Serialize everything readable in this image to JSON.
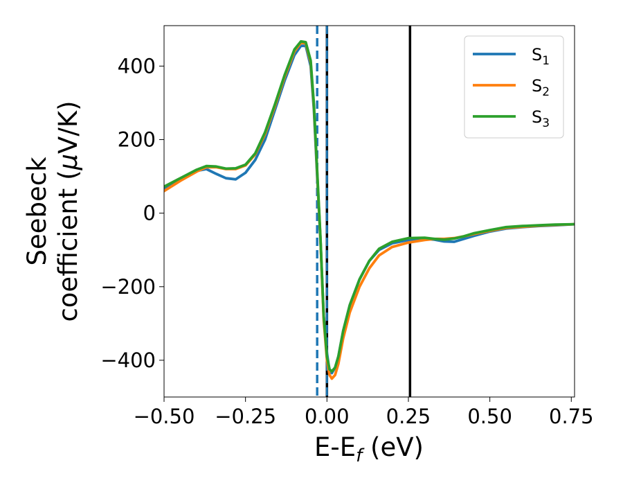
{
  "chart_data": {
    "type": "line",
    "xlabel": {
      "main": "E-E",
      "sub": "f",
      "suffix": " (eV)"
    },
    "ylabel": {
      "line1": "Seebeck",
      "line2_pre": "coefficient  (",
      "line2_mu": "μ",
      "line2_post": "V/K)"
    },
    "xlim": [
      -0.5,
      0.76
    ],
    "ylim": [
      -500,
      510
    ],
    "xticks": [
      -0.5,
      -0.25,
      0.0,
      0.25,
      0.5,
      0.75
    ],
    "xtick_labels": [
      "−0.50",
      "−0.25",
      "0.00",
      "0.25",
      "0.50",
      "0.75"
    ],
    "yticks": [
      -400,
      -200,
      0,
      200,
      400
    ],
    "ytick_labels": [
      "−400",
      "−200",
      "0",
      "200",
      "400"
    ],
    "legend_position": "top-right",
    "series": [
      {
        "name": "S",
        "sub": "1",
        "color": "#1f77b4",
        "x": [
          -0.5,
          -0.45,
          -0.4,
          -0.37,
          -0.34,
          -0.31,
          -0.28,
          -0.25,
          -0.22,
          -0.19,
          -0.16,
          -0.13,
          -0.1,
          -0.08,
          -0.065,
          -0.05,
          -0.04,
          -0.03,
          -0.02,
          -0.01,
          0.0,
          0.008,
          0.015,
          0.025,
          0.035,
          0.05,
          0.07,
          0.1,
          0.13,
          0.16,
          0.2,
          0.25,
          0.3,
          0.33,
          0.36,
          0.39,
          0.42,
          0.45,
          0.5,
          0.55,
          0.6,
          0.65,
          0.7,
          0.76
        ],
        "y": [
          65,
          90,
          115,
          120,
          107,
          95,
          92,
          110,
          145,
          200,
          280,
          360,
          430,
          455,
          455,
          400,
          280,
          100,
          -70,
          -280,
          -380,
          -430,
          -435,
          -420,
          -390,
          -320,
          -250,
          -180,
          -130,
          -100,
          -82,
          -73,
          -70,
          -72,
          -77,
          -78,
          -70,
          -62,
          -50,
          -42,
          -38,
          -35,
          -33,
          -30
        ]
      },
      {
        "name": "S",
        "sub": "2",
        "color": "#ff7f0e",
        "x": [
          -0.5,
          -0.45,
          -0.4,
          -0.37,
          -0.34,
          -0.31,
          -0.28,
          -0.25,
          -0.22,
          -0.19,
          -0.16,
          -0.13,
          -0.1,
          -0.08,
          -0.065,
          -0.05,
          -0.04,
          -0.03,
          -0.02,
          -0.01,
          0.0,
          0.008,
          0.015,
          0.025,
          0.035,
          0.05,
          0.07,
          0.1,
          0.13,
          0.16,
          0.2,
          0.25,
          0.3,
          0.33,
          0.36,
          0.39,
          0.42,
          0.45,
          0.5,
          0.55,
          0.6,
          0.65,
          0.7,
          0.76
        ],
        "y": [
          60,
          88,
          113,
          125,
          125,
          120,
          120,
          130,
          160,
          215,
          290,
          370,
          440,
          463,
          462,
          410,
          290,
          110,
          -70,
          -290,
          -400,
          -440,
          -450,
          -440,
          -410,
          -340,
          -270,
          -200,
          -150,
          -115,
          -92,
          -80,
          -73,
          -70,
          -70,
          -68,
          -63,
          -57,
          -48,
          -40,
          -37,
          -34,
          -32,
          -30
        ]
      },
      {
        "name": "S",
        "sub": "3",
        "color": "#2ca02c",
        "x": [
          -0.5,
          -0.45,
          -0.4,
          -0.37,
          -0.34,
          -0.31,
          -0.28,
          -0.25,
          -0.22,
          -0.19,
          -0.16,
          -0.13,
          -0.1,
          -0.08,
          -0.065,
          -0.05,
          -0.04,
          -0.03,
          -0.02,
          -0.01,
          0.0,
          0.008,
          0.015,
          0.025,
          0.035,
          0.05,
          0.07,
          0.1,
          0.13,
          0.16,
          0.2,
          0.25,
          0.3,
          0.33,
          0.36,
          0.39,
          0.42,
          0.45,
          0.5,
          0.55,
          0.6,
          0.65,
          0.7,
          0.76
        ],
        "y": [
          72,
          95,
          118,
          128,
          127,
          121,
          122,
          132,
          163,
          220,
          295,
          375,
          445,
          467,
          465,
          415,
          295,
          115,
          -65,
          -280,
          -390,
          -425,
          -430,
          -420,
          -390,
          -320,
          -250,
          -180,
          -130,
          -97,
          -78,
          -68,
          -67,
          -70,
          -72,
          -69,
          -63,
          -55,
          -46,
          -38,
          -35,
          -33,
          -31,
          -30
        ]
      }
    ],
    "vlines": [
      {
        "x": -0.03,
        "style": "dashed",
        "color": "#1f77b4"
      },
      {
        "x": 0.0,
        "style": "solid",
        "color": "#000000"
      },
      {
        "x": 0.0,
        "style": "dashed-overlay",
        "color": "#1f77b4"
      },
      {
        "x": 0.255,
        "style": "solid",
        "color": "#000000"
      }
    ]
  }
}
